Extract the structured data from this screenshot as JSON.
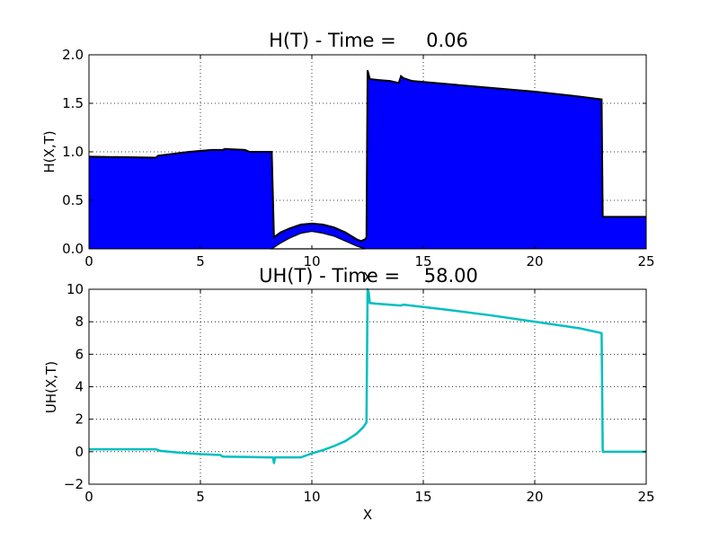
{
  "chart_data": [
    {
      "type": "area",
      "title": "H(T) - Time =     0.06",
      "xlabel": "X",
      "ylabel": "H(X,T)",
      "xlim": [
        0,
        25
      ],
      "ylim": [
        0,
        2.0
      ],
      "x_ticks": [
        "0",
        "5",
        "10",
        "15",
        "20",
        "25"
      ],
      "y_ticks": [
        "0.0",
        "0.5",
        "1.0",
        "1.5",
        "2.0"
      ],
      "grid": true,
      "fill_color": "#0000ff",
      "series": [
        {
          "x": [
            0,
            3.0,
            3.1,
            4.5,
            5.5,
            6.0,
            6.1,
            7.0,
            7.2,
            8.2,
            8.3,
            8.6,
            9.0,
            9.5,
            10.0,
            10.5,
            11.0,
            11.5,
            12.0,
            12.2,
            12.4,
            12.45,
            12.5,
            12.6,
            13.0,
            13.5,
            13.9,
            14.0,
            14.1,
            14.5,
            16.0,
            18.0,
            20.0,
            22.0,
            23.0,
            23.05,
            25.0
          ],
          "y": [
            0.95,
            0.94,
            0.96,
            1.0,
            1.02,
            1.02,
            1.03,
            1.02,
            1.0,
            1.0,
            0.12,
            0.17,
            0.21,
            0.25,
            0.26,
            0.25,
            0.22,
            0.17,
            0.1,
            0.08,
            0.1,
            0.12,
            1.84,
            1.75,
            1.74,
            1.73,
            1.71,
            1.78,
            1.76,
            1.73,
            1.7,
            1.66,
            1.62,
            1.57,
            1.54,
            0.33,
            0.33
          ]
        }
      ],
      "obstacle": {
        "x": [
          8.2,
          8.6,
          9.0,
          9.5,
          10.0,
          10.5,
          11.0,
          11.5,
          12.0,
          12.4
        ],
        "y": [
          0.0,
          0.06,
          0.11,
          0.16,
          0.18,
          0.16,
          0.13,
          0.08,
          0.03,
          0.0
        ]
      }
    },
    {
      "type": "line",
      "title": "UH(T) - Time =    58.00",
      "xlabel": "X",
      "ylabel": "UH(X,T)",
      "xlim": [
        0,
        25
      ],
      "ylim": [
        -2,
        10
      ],
      "x_ticks": [
        "0",
        "5",
        "10",
        "15",
        "20",
        "25"
      ],
      "y_ticks": [
        "−2",
        "0",
        "2",
        "4",
        "6",
        "8",
        "10"
      ],
      "grid": true,
      "line_color": "#00bfbf",
      "series": [
        {
          "x": [
            0,
            3.0,
            3.2,
            4.0,
            5.0,
            5.9,
            6.0,
            7.0,
            8.0,
            8.25,
            8.3,
            8.35,
            9.0,
            9.5,
            10.0,
            10.5,
            11.0,
            11.5,
            12.0,
            12.3,
            12.45,
            12.5,
            12.55,
            12.6,
            13.0,
            14.0,
            14.1,
            16.0,
            18.0,
            20.0,
            22.0,
            23.0,
            23.05,
            25.0
          ],
          "y": [
            0.15,
            0.15,
            0.05,
            -0.05,
            -0.15,
            -0.2,
            -0.3,
            -0.32,
            -0.35,
            -0.35,
            -0.7,
            -0.35,
            -0.35,
            -0.35,
            -0.1,
            0.1,
            0.35,
            0.65,
            1.1,
            1.5,
            1.8,
            10.0,
            9.8,
            9.15,
            9.1,
            9.0,
            9.05,
            8.75,
            8.4,
            8.0,
            7.6,
            7.3,
            0.0,
            0.0
          ]
        }
      ]
    }
  ]
}
